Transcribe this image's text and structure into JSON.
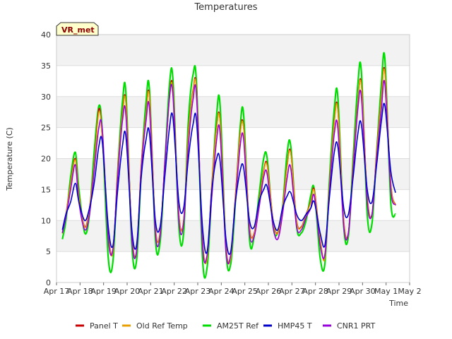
{
  "chart_data": {
    "type": "line",
    "title": "Temperatures",
    "xlabel": "Time",
    "ylabel": "Temperature (C)",
    "ylim": [
      0,
      40
    ],
    "yticks": [
      0,
      5,
      10,
      15,
      20,
      25,
      30,
      35,
      40
    ],
    "xlim": [
      0,
      15
    ],
    "xticks": [
      0,
      1,
      2,
      3,
      4,
      5,
      6,
      7,
      8,
      9,
      10,
      11,
      12,
      13,
      14,
      15
    ],
    "xtick_labels": [
      "Apr 17",
      "Apr 18",
      "Apr 19",
      "Apr 20",
      "Apr 21",
      "Apr 22",
      "Apr 23",
      "Apr 24",
      "Apr 25",
      "Apr 26",
      "Apr 27",
      "Apr 28",
      "Apr 29",
      "Apr 30",
      "May 1",
      "May 2"
    ],
    "grid": "horizontal bands",
    "legend_position": "bottom",
    "site_badge": "VR_met",
    "x_days": [
      0.25,
      0.4,
      0.6,
      0.8,
      0.95,
      1.2,
      1.4,
      1.6,
      1.8,
      1.95,
      2.2,
      2.4,
      2.6,
      2.8,
      2.95,
      3.2,
      3.4,
      3.6,
      3.8,
      3.95,
      4.2,
      4.4,
      4.6,
      4.8,
      4.95,
      5.2,
      5.4,
      5.6,
      5.8,
      5.95,
      6.2,
      6.4,
      6.6,
      6.8,
      6.95,
      7.2,
      7.4,
      7.6,
      7.8,
      7.95,
      8.2,
      8.4,
      8.6,
      8.8,
      8.95,
      9.2,
      9.4,
      9.6,
      9.8,
      9.95,
      10.2,
      10.4,
      10.6,
      10.8,
      10.95,
      11.2,
      11.4,
      11.6,
      11.8,
      11.95,
      12.2,
      12.4,
      12.6,
      12.8,
      12.95,
      13.2,
      13.4,
      13.6,
      13.8,
      13.95,
      14.2,
      14.4
    ],
    "series": [
      {
        "name": "Panel T",
        "color": "#cc0000",
        "width": 1.6,
        "values": [
          8,
          11,
          16,
          20,
          14,
          9,
          12,
          19,
          28,
          23,
          8,
          5,
          18,
          27,
          29,
          8,
          5,
          19,
          27,
          30,
          9,
          8,
          19,
          30,
          31,
          11,
          10,
          24,
          31,
          31,
          7,
          4,
          16,
          25,
          26,
          6,
          4,
          14,
          24,
          25,
          9,
          8,
          13,
          18,
          19,
          10,
          8,
          12,
          19,
          21,
          10,
          9,
          11,
          13,
          15,
          7,
          4,
          16,
          26,
          28,
          10,
          8,
          19,
          29,
          32,
          14,
          11,
          21,
          30,
          34,
          16,
          12.5
        ]
      },
      {
        "name": "Old Ref Temp",
        "color": "#e8a000",
        "width": 1.4,
        "values": [
          7.9,
          10.9,
          15.9,
          19.8,
          13.9,
          8.9,
          11.9,
          18.8,
          27.5,
          22.8,
          7.9,
          4.9,
          17.8,
          26.8,
          28.8,
          7.9,
          4.9,
          18.8,
          26.8,
          29.8,
          8.9,
          7.9,
          18.8,
          29.6,
          30.8,
          10.9,
          9.9,
          23.8,
          30.8,
          30.8,
          6.9,
          3.9,
          15.8,
          24.8,
          25.8,
          5.9,
          3.9,
          13.8,
          23.8,
          24.8,
          8.9,
          7.9,
          12.9,
          17.8,
          18.8,
          9.9,
          7.9,
          11.9,
          18.8,
          20.8,
          9.9,
          8.9,
          10.9,
          12.9,
          14.8,
          6.9,
          3.9,
          15.8,
          25.8,
          27.8,
          9.9,
          7.9,
          18.8,
          28.8,
          31.8,
          13.9,
          10.9,
          20.8,
          29.8,
          33.8,
          15.9,
          12.4
        ]
      },
      {
        "name": "AM25T Ref",
        "color": "#00dd00",
        "width": 2.2,
        "values": [
          7,
          10,
          17,
          21,
          15,
          8,
          11,
          21,
          28.5,
          24,
          4,
          3.5,
          18,
          29,
          30.5,
          6,
          3.5,
          18,
          29,
          31,
          7,
          6.5,
          19,
          32,
          32.5,
          9,
          8,
          26,
          33.5,
          32,
          4,
          2.5,
          15,
          27,
          28.5,
          5,
          3,
          13,
          25,
          27,
          7,
          7.5,
          14,
          20,
          20,
          9,
          8,
          12,
          21,
          22,
          9,
          8,
          10,
          14,
          15,
          4,
          3,
          17,
          28,
          30,
          9,
          7.5,
          20,
          32,
          34,
          11,
          9.5,
          21,
          32,
          36,
          13,
          11
        ]
      },
      {
        "name": "HMP45 T",
        "color": "#0000cc",
        "width": 1.6,
        "values": [
          8.5,
          11,
          13,
          16,
          13,
          10,
          12,
          16,
          22,
          22.5,
          9,
          6,
          15,
          22,
          23.5,
          8.5,
          6,
          17,
          23,
          24,
          10,
          9,
          17,
          25,
          26.5,
          13,
          12,
          20,
          25.5,
          26,
          9,
          5,
          15,
          20,
          19.5,
          7,
          5,
          13,
          18,
          18.5,
          10,
          9,
          13,
          15,
          15.5,
          10,
          8.5,
          12,
          14,
          14.5,
          11,
          10,
          11,
          12,
          13,
          8,
          6,
          14,
          21,
          22,
          12,
          11,
          17,
          24,
          25.5,
          15,
          13,
          19,
          26,
          28.5,
          18,
          14.5
        ]
      },
      {
        "name": "CNR1 PRT",
        "color": "#9900dd",
        "width": 1.6,
        "values": [
          8,
          10.5,
          15,
          19,
          13,
          8.5,
          11,
          18,
          25,
          24.5,
          7,
          5.5,
          17,
          26,
          27,
          7,
          5,
          18,
          26,
          28,
          8,
          7.5,
          19,
          30,
          30,
          10,
          9.5,
          22,
          29.5,
          30,
          6,
          4.5,
          14,
          23,
          24,
          5,
          4.5,
          13,
          22,
          23,
          8,
          7.5,
          12,
          17,
          17.5,
          9,
          7,
          11,
          17,
          18.5,
          9,
          8.5,
          10.5,
          12,
          14,
          6,
          4.5,
          15,
          24,
          25,
          9,
          8,
          18,
          28,
          30,
          13,
          11,
          20,
          28,
          32,
          15,
          12.5
        ]
      }
    ]
  }
}
